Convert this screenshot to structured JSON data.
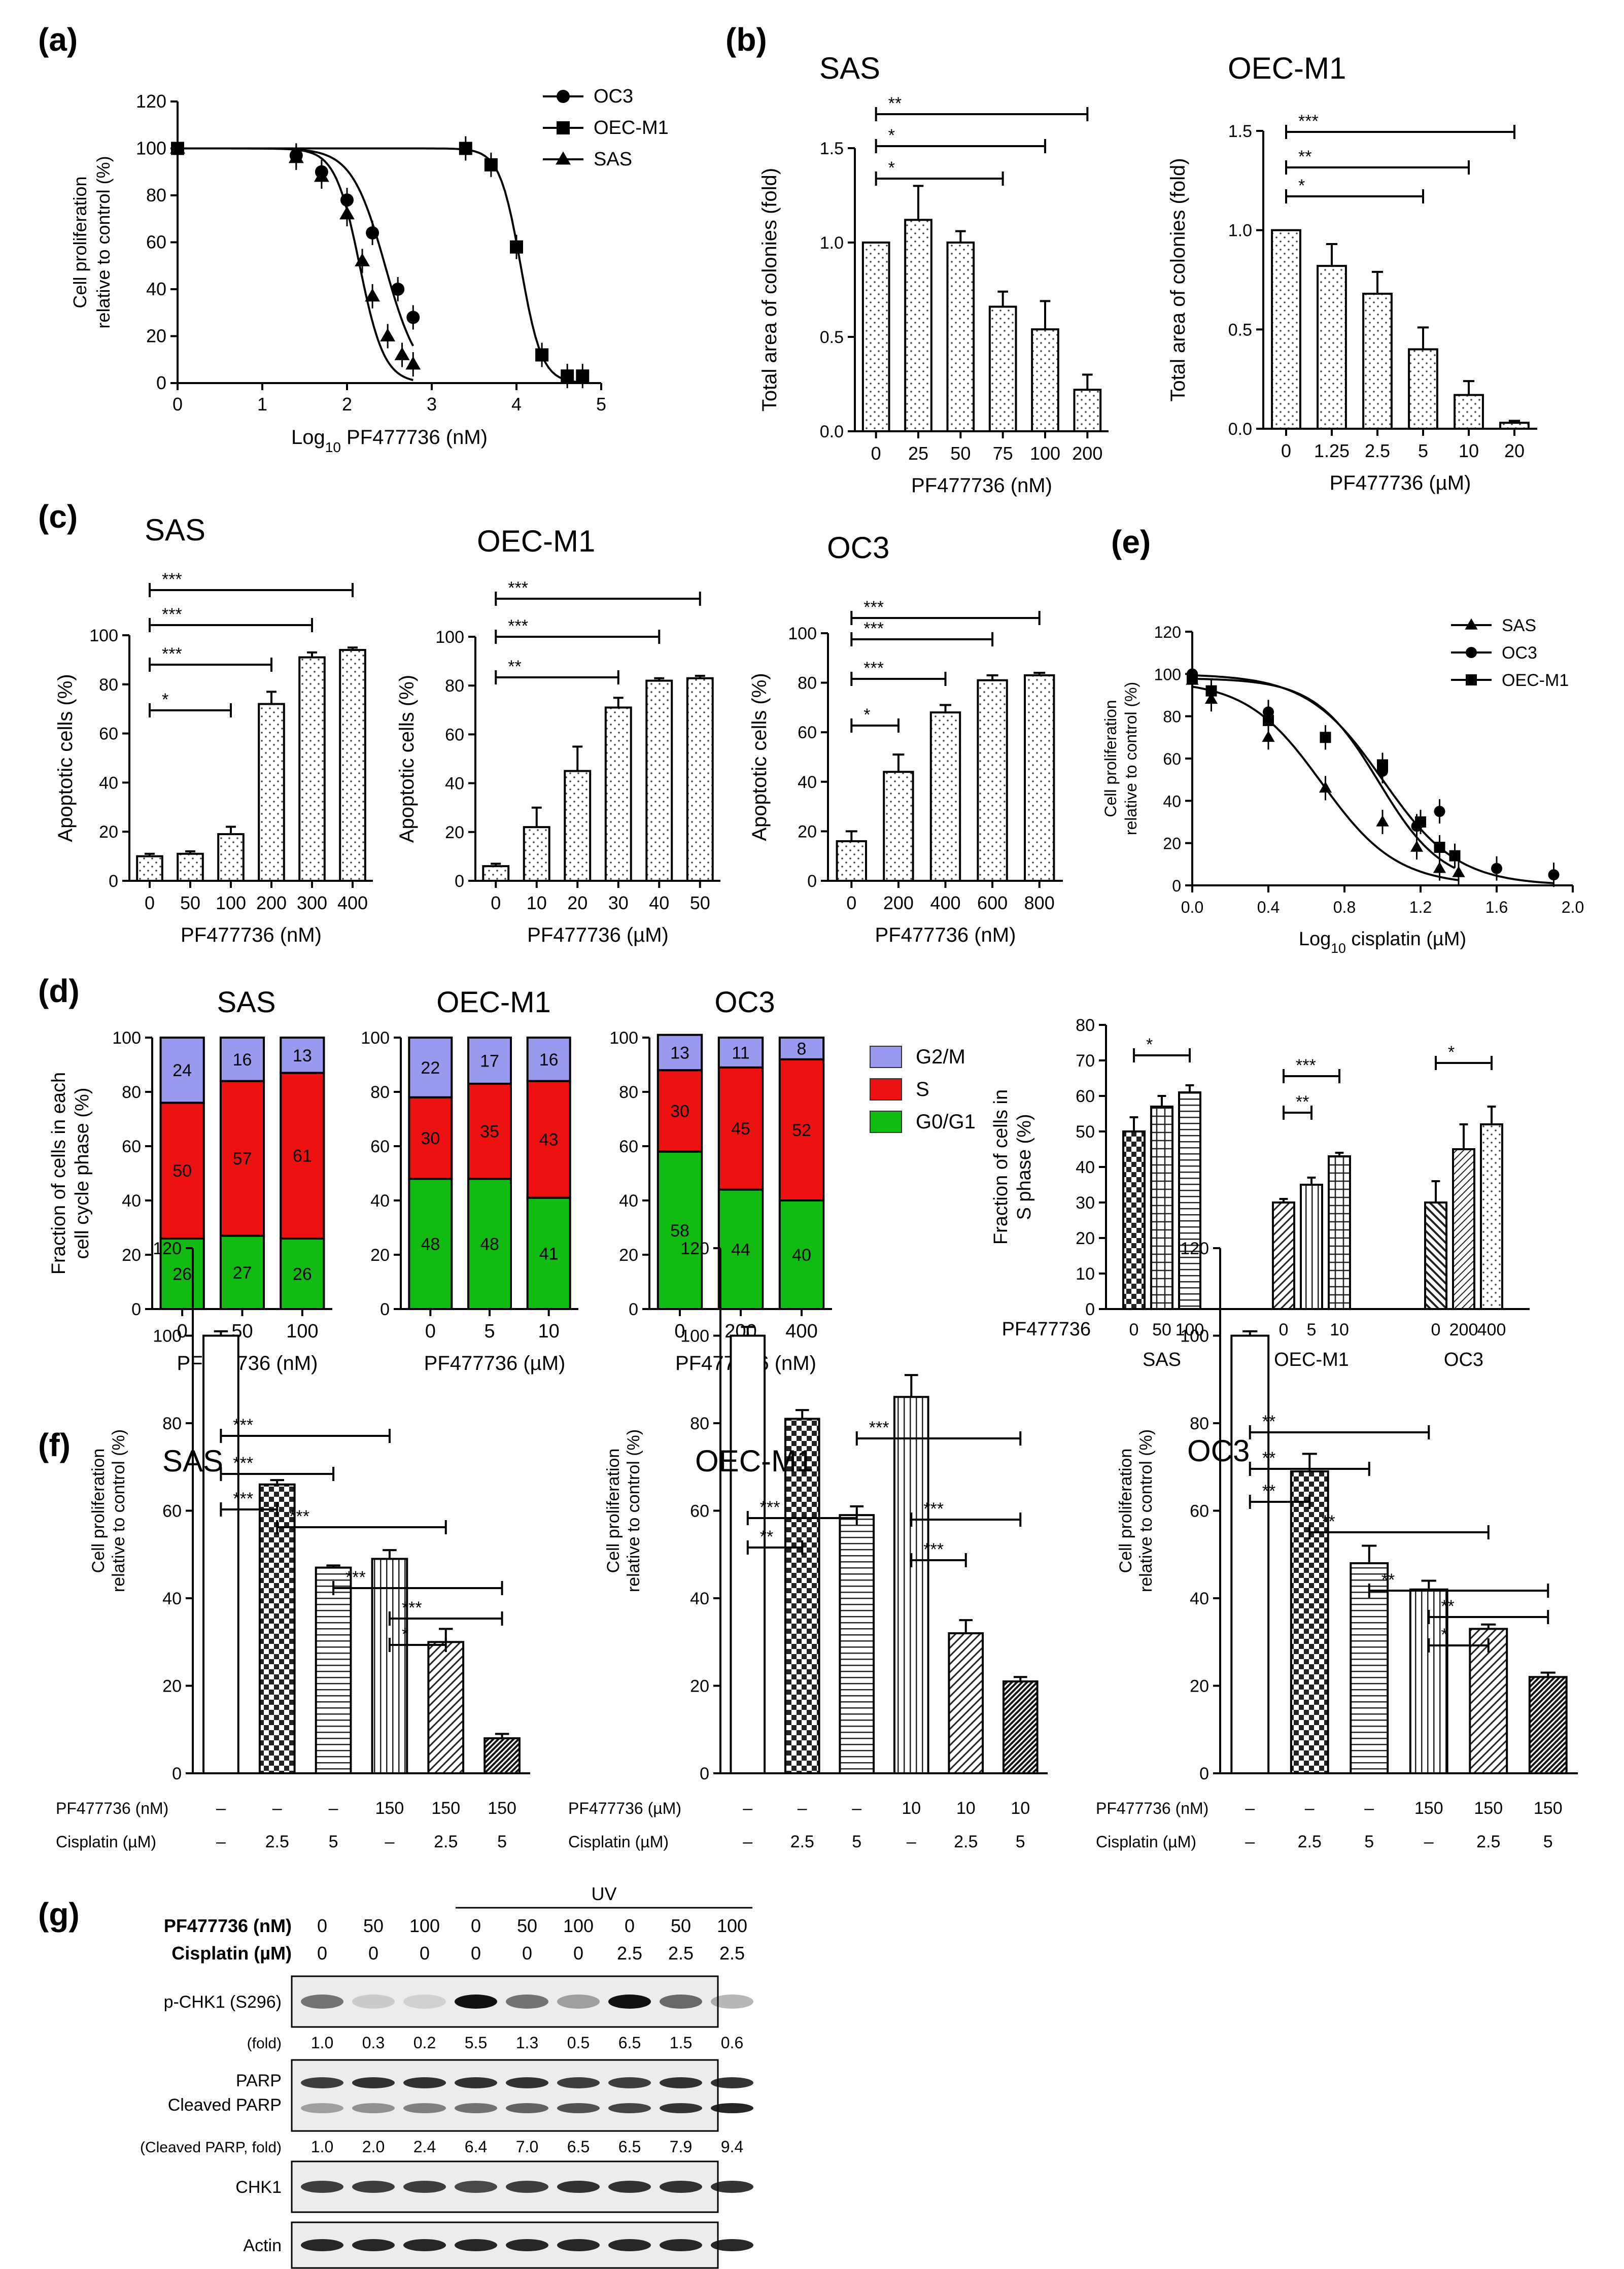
{
  "panel_labels": {
    "a": "(a)",
    "b": "(b)",
    "c": "(c)",
    "d": "(d)",
    "e": "(e)",
    "f": "(f)",
    "g": "(g)"
  },
  "colors": {
    "g2m": "#9999ee",
    "s": "#ee1111",
    "g0g1": "#11bb11",
    "ink": "#000000"
  },
  "chart_data": [
    {
      "id": "a",
      "type": "scatter",
      "title": "",
      "xlabel": "Log10 PF477736 (nM)",
      "ylabel": "Cell proliferation relative to control (%)",
      "xlim": [
        0,
        5
      ],
      "ylim": [
        0,
        120
      ],
      "xticks": [
        "0",
        "1",
        "2",
        "3",
        "4",
        "5"
      ],
      "yticks": [
        "0",
        "20",
        "40",
        "60",
        "80",
        "100",
        "120"
      ],
      "legend": "top-right",
      "series": [
        {
          "name": "OC3",
          "marker": "circle",
          "x": [
            0,
            1.4,
            1.7,
            2.0,
            2.3,
            2.6,
            2.78
          ],
          "y": [
            100,
            97,
            90,
            78,
            64,
            40,
            28
          ],
          "fit_mid": 2.45,
          "fit_slope": 2.2
        },
        {
          "name": "OEC-M1",
          "marker": "square",
          "x": [
            0,
            3.4,
            3.7,
            4.0,
            4.3,
            4.6,
            4.78
          ],
          "y": [
            100,
            100,
            93,
            58,
            12,
            3,
            3
          ],
          "fit_mid": 4.05,
          "fit_slope": 3.5
        },
        {
          "name": "SAS",
          "marker": "triangle",
          "x": [
            0,
            1.4,
            1.7,
            2.0,
            2.18,
            2.3,
            2.48,
            2.65,
            2.78
          ],
          "y": [
            100,
            96,
            88,
            72,
            52,
            37,
            20,
            12,
            8
          ],
          "fit_mid": 2.15,
          "fit_slope": 3.0
        }
      ]
    },
    {
      "id": "b1",
      "type": "bar",
      "title": "SAS",
      "xlabel": "PF477736 (nM)",
      "ylabel": "Total area of colonies (fold)",
      "categories": [
        "0",
        "25",
        "50",
        "75",
        "100",
        "200"
      ],
      "values": [
        1.0,
        1.12,
        1.0,
        0.66,
        0.54,
        0.22
      ],
      "errors": [
        0,
        0.18,
        0.06,
        0.08,
        0.15,
        0.08
      ],
      "ylim": [
        0,
        1.5
      ],
      "yticks": [
        "0.0",
        "0.5",
        "1.0",
        "1.5"
      ],
      "brackets": [
        {
          "from": 0,
          "to": 5,
          "label": "**"
        },
        {
          "from": 0,
          "to": 4,
          "label": "*"
        },
        {
          "from": 0,
          "to": 3,
          "label": "*"
        }
      ]
    },
    {
      "id": "b2",
      "type": "bar",
      "title": "OEC-M1",
      "xlabel": "PF477736 (µM)",
      "ylabel": "Total area of colonies (fold)",
      "categories": [
        "0",
        "1.25",
        "2.5",
        "5",
        "10",
        "20"
      ],
      "values": [
        1.0,
        0.82,
        0.68,
        0.4,
        0.17,
        0.03
      ],
      "errors": [
        0,
        0.11,
        0.11,
        0.11,
        0.07,
        0.01
      ],
      "ylim": [
        0,
        1.5
      ],
      "yticks": [
        "0.0",
        "0.5",
        "1.0",
        "1.5"
      ],
      "brackets": [
        {
          "from": 0,
          "to": 5,
          "label": "***"
        },
        {
          "from": 0,
          "to": 4,
          "label": "**"
        },
        {
          "from": 0,
          "to": 3,
          "label": "*"
        }
      ]
    },
    {
      "id": "c1",
      "type": "bar",
      "title": "SAS",
      "xlabel": "PF477736 (nM)",
      "ylabel": "Apoptotic cells (%)",
      "categories": [
        "0",
        "50",
        "100",
        "200",
        "300",
        "400"
      ],
      "values": [
        10,
        11,
        19,
        72,
        91,
        94
      ],
      "errors": [
        1,
        1,
        3,
        5,
        2,
        1
      ],
      "ylim": [
        0,
        100
      ],
      "yticks": [
        "0",
        "20",
        "40",
        "60",
        "80",
        "100"
      ],
      "brackets": [
        {
          "from": 0,
          "to": 5,
          "label": "***"
        },
        {
          "from": 0,
          "to": 4,
          "label": "***"
        },
        {
          "from": 0,
          "to": 3,
          "label": "***"
        },
        {
          "from": 0,
          "to": 2,
          "label": "*"
        }
      ]
    },
    {
      "id": "c2",
      "type": "bar",
      "title": "OEC-M1",
      "xlabel": "PF477736 (µM)",
      "ylabel": "Apoptotic cells (%)",
      "categories": [
        "0",
        "10",
        "20",
        "30",
        "40",
        "50"
      ],
      "values": [
        6,
        22,
        45,
        71,
        82,
        83
      ],
      "errors": [
        1,
        8,
        10,
        4,
        1,
        1
      ],
      "ylim": [
        0,
        100
      ],
      "yticks": [
        "0",
        "20",
        "40",
        "60",
        "80",
        "100"
      ],
      "brackets": [
        {
          "from": 0,
          "to": 5,
          "label": "***"
        },
        {
          "from": 0,
          "to": 4,
          "label": "***"
        },
        {
          "from": 0,
          "to": 3,
          "label": "**"
        }
      ]
    },
    {
      "id": "c3",
      "type": "bar",
      "title": "OC3",
      "xlabel": "PF477736 (nM)",
      "ylabel": "Apoptotic cells (%)",
      "categories": [
        "0",
        "200",
        "400",
        "600",
        "800"
      ],
      "values": [
        16,
        44,
        68,
        81,
        83
      ],
      "errors": [
        4,
        7,
        3,
        2,
        1
      ],
      "ylim": [
        0,
        100
      ],
      "yticks": [
        "0",
        "20",
        "40",
        "60",
        "80",
        "100"
      ],
      "brackets": [
        {
          "from": 0,
          "to": 4,
          "label": "***"
        },
        {
          "from": 0,
          "to": 3,
          "label": "***"
        },
        {
          "from": 0,
          "to": 2,
          "label": "***"
        },
        {
          "from": 0,
          "to": 1,
          "label": "*"
        }
      ]
    },
    {
      "id": "e",
      "type": "scatter",
      "title": "",
      "xlabel": "Log10 cisplatin (µM)",
      "ylabel": "Cell proliferation relative to control (%)",
      "xlim": [
        0,
        2.0
      ],
      "ylim": [
        0,
        120
      ],
      "xticks": [
        "0.0",
        "0.4",
        "0.8",
        "1.2",
        "1.6",
        "2.0"
      ],
      "yticks": [
        "0",
        "20",
        "40",
        "60",
        "80",
        "100",
        "120"
      ],
      "legend": "top-right",
      "series": [
        {
          "name": "SAS",
          "marker": "triangle",
          "x": [
            0,
            0.1,
            0.4,
            0.7,
            1.0,
            1.18,
            1.3,
            1.4
          ],
          "y": [
            97,
            88,
            70,
            46,
            30,
            18,
            8,
            6
          ],
          "fit_mid": 0.68,
          "fit_slope": 2.2
        },
        {
          "name": "OC3",
          "marker": "circle",
          "x": [
            0,
            0.4,
            0.7,
            1.0,
            1.18,
            1.3,
            1.6,
            1.9
          ],
          "y": [
            100,
            82,
            70,
            54,
            28,
            35,
            8,
            5
          ],
          "fit_mid": 1.0,
          "fit_slope": 2.2
        },
        {
          "name": "OEC-M1",
          "marker": "square",
          "x": [
            0,
            0.1,
            0.4,
            0.7,
            1.0,
            1.2,
            1.3,
            1.38
          ],
          "y": [
            98,
            92,
            78,
            70,
            57,
            30,
            18,
            14
          ],
          "fit_mid": 0.98,
          "fit_slope": 2.6
        }
      ]
    },
    {
      "id": "d1",
      "type": "bar",
      "stacked": true,
      "title": "SAS",
      "xlabel": "PF477736 (nM)",
      "ylabel": "Fraction of cells in each cell cycle phase (%)",
      "categories": [
        "0",
        "50",
        "100"
      ],
      "ylim": [
        0,
        100
      ],
      "yticks": [
        "0",
        "20",
        "40",
        "60",
        "80",
        "100"
      ],
      "series": [
        {
          "name": "G0/G1",
          "values": [
            26,
            27,
            26
          ]
        },
        {
          "name": "S",
          "values": [
            50,
            57,
            61
          ]
        },
        {
          "name": "G2/M",
          "values": [
            24,
            16,
            13
          ]
        }
      ]
    },
    {
      "id": "d2",
      "type": "bar",
      "stacked": true,
      "title": "OEC-M1",
      "xlabel": "PF477736 (µM)",
      "ylabel": "",
      "categories": [
        "0",
        "5",
        "10"
      ],
      "ylim": [
        0,
        100
      ],
      "yticks": [
        "0",
        "20",
        "40",
        "60",
        "80",
        "100"
      ],
      "series": [
        {
          "name": "G0/G1",
          "values": [
            48,
            48,
            41
          ]
        },
        {
          "name": "S",
          "values": [
            30,
            35,
            43
          ]
        },
        {
          "name": "G2/M",
          "values": [
            22,
            17,
            16
          ]
        }
      ]
    },
    {
      "id": "d3",
      "type": "bar",
      "stacked": true,
      "title": "OC3",
      "xlabel": "PF477736 (nM)",
      "ylabel": "",
      "categories": [
        "0",
        "200",
        "400"
      ],
      "ylim": [
        0,
        100
      ],
      "yticks": [
        "0",
        "20",
        "40",
        "60",
        "80",
        "100"
      ],
      "series": [
        {
          "name": "G0/G1",
          "values": [
            58,
            44,
            40
          ]
        },
        {
          "name": "S",
          "values": [
            30,
            45,
            52
          ]
        },
        {
          "name": "G2/M",
          "values": [
            13,
            11,
            8
          ]
        }
      ],
      "legend": [
        "G2/M",
        "S",
        "G0/G1"
      ]
    },
    {
      "id": "d4",
      "type": "bar",
      "title": "",
      "xlabel": "",
      "ylabel": "Fraction of cells in S phase (%)",
      "prefix_label": "PF477736",
      "groups": [
        "SAS",
        "OEC-M1",
        "OC3"
      ],
      "categories": [
        [
          "0",
          "50",
          "100"
        ],
        [
          "0",
          "5",
          "10"
        ],
        [
          "0",
          "200",
          "400"
        ]
      ],
      "values": [
        [
          50,
          57,
          61
        ],
        [
          30,
          35,
          43
        ],
        [
          30,
          45,
          52
        ]
      ],
      "errors": [
        [
          4,
          3,
          2
        ],
        [
          1,
          2,
          1
        ],
        [
          6,
          7,
          5
        ]
      ],
      "ylim": [
        0,
        80
      ],
      "yticks": [
        "0",
        "10",
        "20",
        "30",
        "40",
        "50",
        "60",
        "70",
        "80"
      ],
      "brackets": [
        {
          "g": 0,
          "from": 0,
          "to": 2,
          "label": "*"
        },
        {
          "g": 1,
          "from": 0,
          "to": 2,
          "label": "***"
        },
        {
          "g": 1,
          "from": 0,
          "to": 1,
          "label": "**"
        },
        {
          "g": 2,
          "from": 0,
          "to": 2,
          "label": "*"
        }
      ]
    },
    {
      "id": "f1",
      "type": "bar",
      "title": "SAS",
      "xlabel": "",
      "ylabel": "Cell proliferation relative to control (%)",
      "ylim": [
        0,
        120
      ],
      "yticks": [
        "0",
        "20",
        "40",
        "60",
        "80",
        "100",
        "120"
      ],
      "row_labels": [
        "PF477736 (nM)",
        "Cisplatin (µM)"
      ],
      "row1": [
        "–",
        "–",
        "–",
        "150",
        "150",
        "150"
      ],
      "row2": [
        "–",
        "2.5",
        "5",
        "–",
        "2.5",
        "5"
      ],
      "values": [
        100,
        66,
        47,
        49,
        30,
        8
      ],
      "errors": [
        1,
        1,
        0.5,
        2,
        3,
        1
      ],
      "brackets": [
        {
          "from": 0,
          "to": 3,
          "label": "***"
        },
        {
          "from": 0,
          "to": 2,
          "label": "***"
        },
        {
          "from": 0,
          "to": 1,
          "label": "***"
        },
        {
          "from": 1,
          "to": 4,
          "label": "***"
        },
        {
          "from": 2,
          "to": 5,
          "label": "***"
        },
        {
          "from": 3,
          "to": 5,
          "label": "***"
        },
        {
          "from": 3,
          "to": 4,
          "label": "*"
        }
      ]
    },
    {
      "id": "f2",
      "type": "bar",
      "title": "OEC-M1",
      "xlabel": "",
      "ylabel": "Cell proliferation relative to control (%)",
      "ylim": [
        0,
        120
      ],
      "yticks": [
        "0",
        "20",
        "40",
        "60",
        "80",
        "100",
        "120"
      ],
      "row_labels": [
        "PF477736 (µM)",
        "Cisplatin (µM)"
      ],
      "row1": [
        "–",
        "–",
        "–",
        "10",
        "10",
        "10"
      ],
      "row2": [
        "–",
        "2.5",
        "5",
        "–",
        "2.5",
        "5"
      ],
      "values": [
        100,
        81,
        59,
        86,
        32,
        21
      ],
      "errors": [
        2,
        2,
        2,
        5,
        3,
        1
      ],
      "brackets": [
        {
          "from": 0,
          "to": 2,
          "label": "***"
        },
        {
          "from": 0,
          "to": 1,
          "label": "**"
        },
        {
          "from": 2,
          "to": 5,
          "label": "***"
        },
        {
          "from": 3,
          "to": 5,
          "label": "***"
        },
        {
          "from": 3,
          "to": 4,
          "label": "***"
        }
      ]
    },
    {
      "id": "f3",
      "type": "bar",
      "title": "OC3",
      "xlabel": "",
      "ylabel": "Cell proliferation relative to control (%)",
      "ylim": [
        0,
        120
      ],
      "yticks": [
        "0",
        "20",
        "40",
        "60",
        "80",
        "100",
        "120"
      ],
      "row_labels": [
        "PF477736 (nM)",
        "Cisplatin (µM)"
      ],
      "row1": [
        "–",
        "–",
        "–",
        "150",
        "150",
        "150"
      ],
      "row2": [
        "–",
        "2.5",
        "5",
        "–",
        "2.5",
        "5"
      ],
      "values": [
        100,
        69,
        48,
        42,
        33,
        22
      ],
      "errors": [
        1,
        4,
        4,
        2,
        1,
        1
      ],
      "brackets": [
        {
          "from": 0,
          "to": 3,
          "label": "**"
        },
        {
          "from": 0,
          "to": 2,
          "label": "**"
        },
        {
          "from": 0,
          "to": 1,
          "label": "**"
        },
        {
          "from": 1,
          "to": 4,
          "label": "**"
        },
        {
          "from": 2,
          "to": 5,
          "label": "**"
        },
        {
          "from": 3,
          "to": 5,
          "label": "**"
        },
        {
          "from": 3,
          "to": 4,
          "label": "*"
        }
      ]
    }
  ],
  "blot": {
    "uv_label": "UV",
    "pf_label": "PF477736 (nM)",
    "cis_label": "Cisplatin (µM)",
    "pf": [
      "0",
      "50",
      "100",
      "0",
      "50",
      "100",
      "0",
      "50",
      "100"
    ],
    "cis": [
      "0",
      "0",
      "0",
      "0",
      "0",
      "0",
      "2.5",
      "2.5",
      "2.5"
    ],
    "rows": [
      {
        "name": "p-CHK1 (S296)",
        "fold_label": "(fold)",
        "fold": [
          "1.0",
          "0.3",
          "0.2",
          "5.5",
          "1.3",
          "0.5",
          "6.5",
          "1.5",
          "0.6"
        ],
        "intensity": [
          0.55,
          0.15,
          0.12,
          1.0,
          0.55,
          0.35,
          1.0,
          0.6,
          0.3
        ]
      },
      {
        "name": "PARP",
        "name2": "Cleaved PARP",
        "fold_label": "(Cleaved PARP, fold)",
        "fold": [
          "1.0",
          "2.0",
          "2.4",
          "6.4",
          "7.0",
          "6.5",
          "6.5",
          "7.9",
          "9.4"
        ],
        "intensity": [
          0.8,
          0.85,
          0.85,
          0.85,
          0.85,
          0.8,
          0.8,
          0.85,
          0.85
        ]
      },
      {
        "name": "CHK1",
        "intensity": [
          0.8,
          0.8,
          0.8,
          0.75,
          0.8,
          0.85,
          0.85,
          0.85,
          0.85
        ]
      },
      {
        "name": "Actin",
        "intensity": [
          0.9,
          0.9,
          0.9,
          0.9,
          0.9,
          0.9,
          0.9,
          0.9,
          0.9
        ]
      }
    ]
  }
}
